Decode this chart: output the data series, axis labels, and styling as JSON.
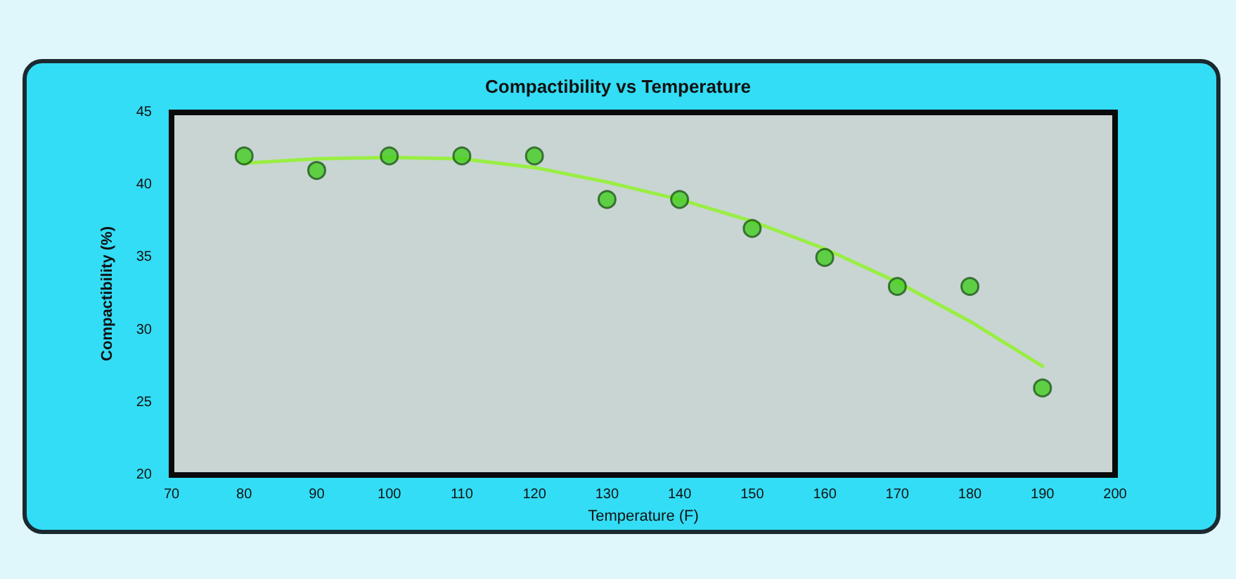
{
  "chart_data": {
    "type": "scatter",
    "title": "Compactibility vs Temperature",
    "xlabel": "Temperature (F)",
    "ylabel": "Compactibility (%)",
    "xlim": [
      70,
      200
    ],
    "xticks": [
      70,
      80,
      90,
      100,
      110,
      120,
      130,
      140,
      150,
      160,
      170,
      180,
      190,
      200
    ],
    "ylim": [
      20,
      45
    ],
    "yticks": [
      20,
      25,
      30,
      35,
      40,
      45
    ],
    "grid": false,
    "marker": "circle",
    "series": [
      {
        "color": "#44cc22",
        "x": [
          80,
          90,
          100,
          110,
          120,
          130,
          140,
          150,
          160,
          170,
          180,
          190
        ],
        "values": [
          42,
          41,
          42,
          42,
          42,
          39,
          39,
          37,
          35,
          33,
          33,
          26
        ]
      },
      {
        "type": "line",
        "color": "#99ee44",
        "marker": "none",
        "x": [
          80,
          90,
          100,
          110,
          120,
          130,
          140,
          150,
          160,
          170,
          180,
          190
        ],
        "values": [
          41.5,
          41.8,
          41.9,
          41.8,
          41.2,
          40.2,
          39,
          37.5,
          35.6,
          33.3,
          30.6,
          27.5
        ]
      }
    ]
  }
}
